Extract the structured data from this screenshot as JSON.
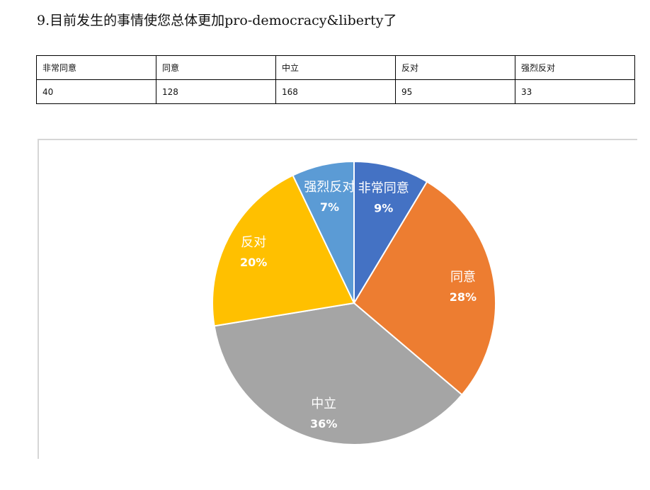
{
  "title": "9.目前发生的事情使您总体更加pro-democracy&liberty了",
  "table": {
    "headers": [
      "非常同意",
      "同意",
      "中立",
      "反对",
      "强烈反对"
    ],
    "values": [
      "40",
      "128",
      "168",
      "95",
      "33"
    ]
  },
  "chart_data": {
    "type": "pie",
    "categories": [
      "非常同意",
      "同意",
      "中立",
      "反对",
      "强烈反对"
    ],
    "values": [
      40,
      128,
      168,
      95,
      33
    ],
    "percent_labels": [
      "9%",
      "28%",
      "36%",
      "20%",
      "7%"
    ],
    "colors": [
      "#4472c4",
      "#ed7d31",
      "#a5a5a5",
      "#ffc000",
      "#5b9bd5"
    ],
    "start": "12 o'clock, clockwise"
  }
}
